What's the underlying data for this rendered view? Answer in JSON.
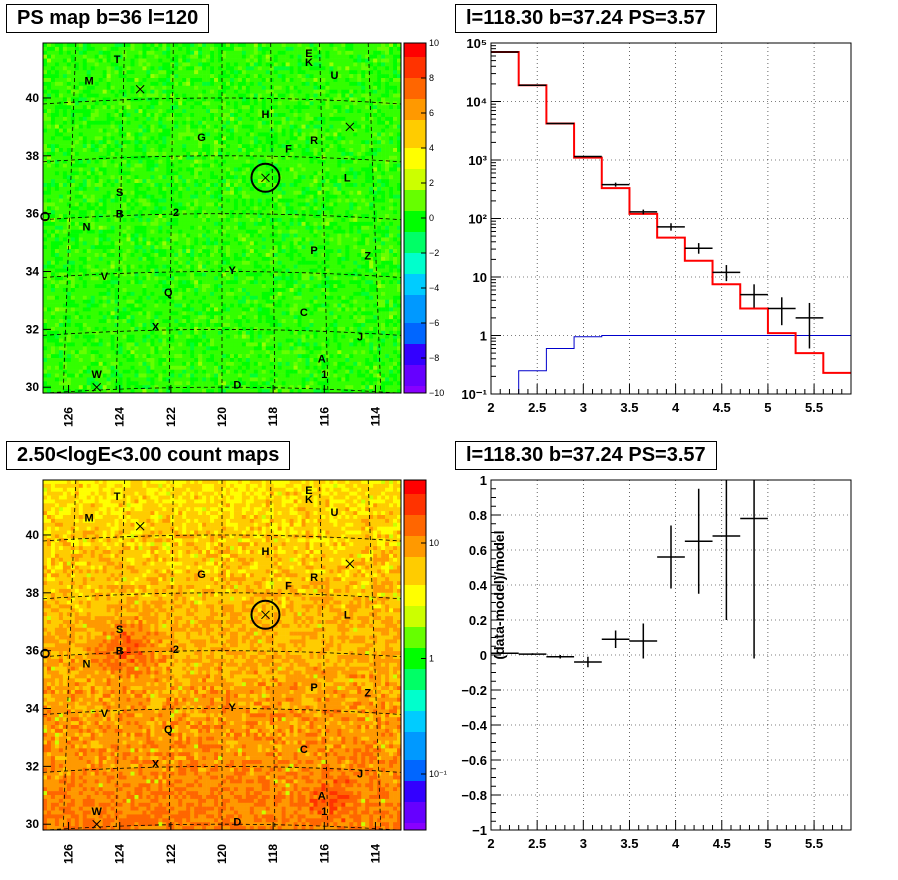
{
  "colors": {
    "frame": "#000000",
    "model_line": "#ff0000",
    "background_line": "#0000cc",
    "marker": "#000000"
  },
  "panels": {
    "map_ps": {
      "title": "PS map b=36 l=120",
      "x_ticks": [
        "126",
        "124",
        "122",
        "120",
        "118",
        "116",
        "114"
      ],
      "y_ticks": [
        "40",
        "38",
        "36",
        "34",
        "32",
        "30"
      ],
      "colorbar_ticks": [
        "10",
        "8",
        "6",
        "4",
        "2",
        "0",
        "−2",
        "−4",
        "−6",
        "−8",
        "−10"
      ],
      "colormap": "green-dominant (value ~0)"
    },
    "map_counts": {
      "title": "2.50<logE<3.00 count maps",
      "x_ticks": [
        "126",
        "124",
        "122",
        "120",
        "118",
        "116",
        "114"
      ],
      "y_ticks": [
        "40",
        "38",
        "36",
        "34",
        "32",
        "30"
      ],
      "colorbar_ticks": [
        "10",
        "1",
        "10⁻¹"
      ],
      "colormap": "yellow-orange-red (counts)"
    },
    "spectrum": {
      "title": "l=118.30 b=37.24 PS=3.57",
      "x_ticks": [
        "2",
        "2.5",
        "3",
        "3.5",
        "4",
        "4.5",
        "5",
        "5.5"
      ],
      "y_ticks": [
        "10⁵",
        "10⁴",
        "10³",
        "10²",
        "10",
        "1",
        "10⁻¹"
      ]
    },
    "residual": {
      "title": "l=118.30 b=37.24 PS=3.57",
      "ylabel": "(data-model)/model",
      "x_ticks": [
        "2",
        "2.5",
        "3",
        "3.5",
        "4",
        "4.5",
        "5",
        "5.5"
      ],
      "y_ticks": [
        "1",
        "0.8",
        "0.6",
        "0.4",
        "0.2",
        "0",
        "−0.2",
        "−0.4",
        "−0.6",
        "−0.8",
        "−1"
      ]
    }
  },
  "map_labels": [
    {
      "t": "T",
      "l": 124.1,
      "b": 41.35
    },
    {
      "t": "E",
      "l": 116.6,
      "b": 41.55
    },
    {
      "t": "K",
      "l": 116.6,
      "b": 41.25
    },
    {
      "t": "U",
      "l": 115.6,
      "b": 40.8
    },
    {
      "t": "M",
      "l": 125.2,
      "b": 40.6
    },
    {
      "t": "H",
      "l": 118.3,
      "b": 39.45
    },
    {
      "t": "G",
      "l": 120.8,
      "b": 38.65
    },
    {
      "t": "F",
      "l": 117.4,
      "b": 38.25
    },
    {
      "t": "R",
      "l": 116.4,
      "b": 38.55
    },
    {
      "t": "L",
      "l": 115.1,
      "b": 37.25
    },
    {
      "t": "S",
      "l": 124.0,
      "b": 36.75
    },
    {
      "t": "B",
      "l": 124.0,
      "b": 36.0
    },
    {
      "t": "2",
      "l": 121.8,
      "b": 36.05
    },
    {
      "t": "N",
      "l": 125.3,
      "b": 35.55
    },
    {
      "t": "P",
      "l": 116.4,
      "b": 34.75
    },
    {
      "t": "Z",
      "l": 114.3,
      "b": 34.55
    },
    {
      "t": "Y",
      "l": 119.6,
      "b": 34.05
    },
    {
      "t": "V",
      "l": 124.6,
      "b": 33.85
    },
    {
      "t": "Q",
      "l": 122.1,
      "b": 33.3
    },
    {
      "t": "C",
      "l": 116.8,
      "b": 32.6
    },
    {
      "t": "X",
      "l": 122.6,
      "b": 32.1
    },
    {
      "t": "J",
      "l": 114.6,
      "b": 31.75
    },
    {
      "t": "A",
      "l": 116.1,
      "b": 31.0
    },
    {
      "t": "1",
      "l": 116.0,
      "b": 30.45
    },
    {
      "t": "W",
      "l": 124.9,
      "b": 30.45
    },
    {
      "t": "D",
      "l": 119.4,
      "b": 30.1
    }
  ],
  "chart_data": [
    {
      "type": "heatmap",
      "title": "PS map b=36 l=120",
      "xlim": [
        127.0,
        113.0
      ],
      "ylim": [
        29.8,
        41.9
      ],
      "zlim": [
        -10,
        10
      ],
      "marked_source": {
        "l": 118.3,
        "b": 37.24
      }
    },
    {
      "type": "line",
      "title": "l=118.30 b=37.24 PS=3.57",
      "xlim": [
        2.0,
        5.9
      ],
      "ylim": [
        0.1,
        100000
      ],
      "yscale": "log",
      "grid": true,
      "series": [
        {
          "edges": [
            2.0,
            2.3,
            2.6,
            2.9,
            3.2,
            3.5,
            3.8,
            4.1,
            4.4,
            4.7,
            5.0,
            5.3,
            5.6,
            5.9
          ],
          "values": [
            70000,
            19000,
            4200,
            1100,
            330,
            120,
            47,
            19,
            7.5,
            2.9,
            1.1,
            0.5,
            0.23
          ]
        },
        {
          "edges": [
            2.0,
            2.3,
            2.6,
            2.9,
            3.2,
            3.5,
            3.8,
            4.1,
            4.4,
            4.7,
            5.0,
            5.3,
            5.6,
            5.9
          ],
          "values": [
            0.1,
            0.25,
            0.6,
            0.95,
            1.0,
            1.0,
            1.0,
            1.0,
            1.0,
            1.0,
            1.0,
            1.0,
            1.0
          ]
        },
        {
          "points": [
            {
              "x": 2.15,
              "y": 70000,
              "xerr": 0.15
            },
            {
              "x": 2.45,
              "y": 19000,
              "xerr": 0.15
            },
            {
              "x": 2.75,
              "y": 4200,
              "xerr": 0.15
            },
            {
              "x": 3.05,
              "y": 1150,
              "xerr": 0.15
            },
            {
              "x": 3.35,
              "y": 380,
              "xerr": 0.15,
              "ylo": 350,
              "yhi": 410
            },
            {
              "x": 3.65,
              "y": 130,
              "xerr": 0.15,
              "ylo": 118,
              "yhi": 142
            },
            {
              "x": 3.95,
              "y": 72,
              "xerr": 0.15,
              "ylo": 62,
              "yhi": 83
            },
            {
              "x": 4.25,
              "y": 31,
              "xerr": 0.15,
              "ylo": 25,
              "yhi": 38
            },
            {
              "x": 4.55,
              "y": 12,
              "xerr": 0.15,
              "ylo": 8.5,
              "yhi": 16
            },
            {
              "x": 4.85,
              "y": 5,
              "xerr": 0.15,
              "ylo": 3,
              "yhi": 7.5
            },
            {
              "x": 5.15,
              "y": 2.9,
              "xerr": 0.15,
              "ylo": 1.5,
              "yhi": 4.5
            },
            {
              "x": 5.45,
              "y": 2.0,
              "xerr": 0.15,
              "ylo": 0.6,
              "yhi": 3.6
            }
          ]
        }
      ]
    },
    {
      "type": "heatmap",
      "title": "2.50<logE<3.00 count maps",
      "xlim": [
        127.0,
        113.0
      ],
      "ylim": [
        29.8,
        41.9
      ],
      "zscale": "log",
      "zlim": [
        0.05,
        30
      ],
      "marked_source": {
        "l": 118.3,
        "b": 37.24
      }
    },
    {
      "type": "scatter",
      "title": "l=118.30 b=37.24 PS=3.57",
      "ylabel": "(data-model)/model",
      "xlim": [
        2.0,
        5.9
      ],
      "ylim": [
        -1,
        1
      ],
      "grid": true,
      "points": [
        {
          "x": 2.15,
          "y": 0.01,
          "xerr": 0.15,
          "yerr": 0.003
        },
        {
          "x": 2.45,
          "y": 0.005,
          "xerr": 0.15,
          "yerr": 0.005
        },
        {
          "x": 2.75,
          "y": -0.01,
          "xerr": 0.15,
          "yerr": 0.01
        },
        {
          "x": 3.05,
          "y": -0.04,
          "xerr": 0.15,
          "yerr": 0.03
        },
        {
          "x": 3.35,
          "y": 0.09,
          "xerr": 0.15,
          "yerr": 0.05
        },
        {
          "x": 3.65,
          "y": 0.08,
          "xerr": 0.15,
          "yerr": 0.1
        },
        {
          "x": 3.95,
          "y": 0.56,
          "xerr": 0.15,
          "yerr": 0.18
        },
        {
          "x": 4.25,
          "y": 0.65,
          "xerr": 0.15,
          "yerr": 0.3
        },
        {
          "x": 4.55,
          "y": 0.68,
          "xerr": 0.15,
          "yerr": 0.48
        },
        {
          "x": 4.85,
          "y": 0.78,
          "xerr": 0.15,
          "yerr": 0.8
        }
      ]
    }
  ]
}
